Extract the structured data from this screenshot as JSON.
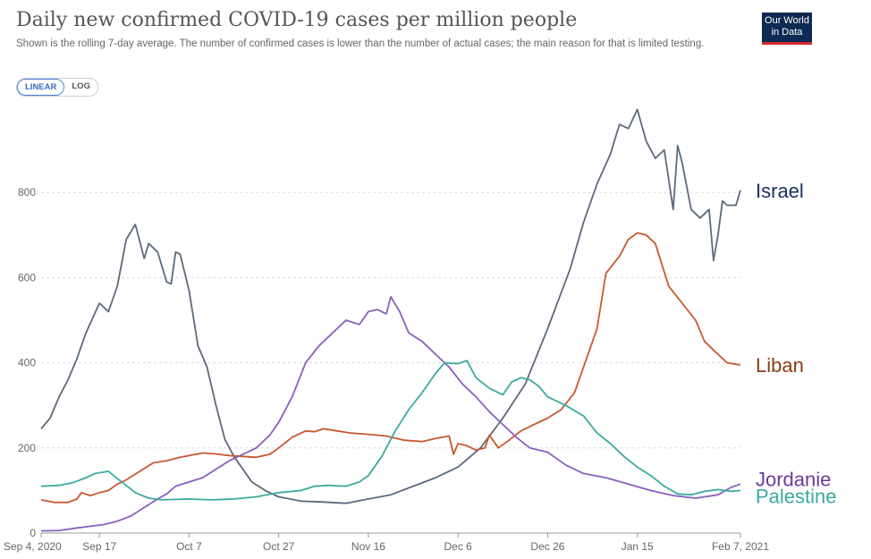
{
  "header": {
    "title": "Daily new confirmed COVID-19 cases per million people",
    "subtitle": "Shown is the rolling 7-day average. The number of confirmed cases is lower than the number of actual cases; the main reason for that is limited testing.",
    "logo_line1": "Our World",
    "logo_line2": "in Data"
  },
  "scale_toggle": {
    "linear_label": "LINEAR",
    "log_label": "LOG",
    "selected": "LINEAR"
  },
  "chart_data": {
    "type": "line",
    "title": "Daily new confirmed COVID-19 cases per million people",
    "x_start": "Sep 4, 2020",
    "x_end": "Feb 7, 2021",
    "x_ticks": [
      {
        "label": "Sep 4, 2020",
        "date": "2020-09-04"
      },
      {
        "label": "Sep 17",
        "date": "2020-09-17"
      },
      {
        "label": "Oct 7",
        "date": "2020-10-07"
      },
      {
        "label": "Oct 27",
        "date": "2020-10-27"
      },
      {
        "label": "Nov 16",
        "date": "2020-11-16"
      },
      {
        "label": "Dec 6",
        "date": "2020-12-06"
      },
      {
        "label": "Dec 26",
        "date": "2020-12-26"
      },
      {
        "label": "Jan 15",
        "date": "2021-01-15"
      },
      {
        "label": "Feb 7, 2021",
        "date": "2021-02-07"
      }
    ],
    "y_ticks": [
      0,
      200,
      400,
      600,
      800
    ],
    "ylim": [
      0,
      1000
    ],
    "grid": "horizontal dashed",
    "series": [
      {
        "name": "Israel",
        "color": "#5b6a7c",
        "label_color": "#1c2f63",
        "points": [
          [
            "2020-09-04",
            245
          ],
          [
            "2020-09-06",
            270
          ],
          [
            "2020-09-08",
            320
          ],
          [
            "2020-09-10",
            360
          ],
          [
            "2020-09-12",
            410
          ],
          [
            "2020-09-14",
            470
          ],
          [
            "2020-09-17",
            540
          ],
          [
            "2020-09-19",
            520
          ],
          [
            "2020-09-21",
            580
          ],
          [
            "2020-09-23",
            690
          ],
          [
            "2020-09-25",
            725
          ],
          [
            "2020-09-27",
            645
          ],
          [
            "2020-09-28",
            680
          ],
          [
            "2020-09-30",
            660
          ],
          [
            "2020-10-02",
            590
          ],
          [
            "2020-10-03",
            585
          ],
          [
            "2020-10-04",
            660
          ],
          [
            "2020-10-05",
            655
          ],
          [
            "2020-10-07",
            570
          ],
          [
            "2020-10-09",
            440
          ],
          [
            "2020-10-11",
            390
          ],
          [
            "2020-10-13",
            300
          ],
          [
            "2020-10-15",
            220
          ],
          [
            "2020-10-17",
            180
          ],
          [
            "2020-10-19",
            150
          ],
          [
            "2020-10-21",
            120
          ],
          [
            "2020-10-24",
            100
          ],
          [
            "2020-10-27",
            85
          ],
          [
            "2020-11-01",
            75
          ],
          [
            "2020-11-06",
            73
          ],
          [
            "2020-11-11",
            70
          ],
          [
            "2020-11-16",
            80
          ],
          [
            "2020-11-21",
            90
          ],
          [
            "2020-11-26",
            110
          ],
          [
            "2020-12-01",
            130
          ],
          [
            "2020-12-06",
            155
          ],
          [
            "2020-12-11",
            200
          ],
          [
            "2020-12-16",
            270
          ],
          [
            "2020-12-21",
            350
          ],
          [
            "2020-12-26",
            480
          ],
          [
            "2020-12-31",
            620
          ],
          [
            "2021-01-03",
            730
          ],
          [
            "2021-01-06",
            820
          ],
          [
            "2021-01-09",
            890
          ],
          [
            "2021-01-11",
            960
          ],
          [
            "2021-01-13",
            950
          ],
          [
            "2021-01-15",
            995
          ],
          [
            "2021-01-17",
            920
          ],
          [
            "2021-01-19",
            880
          ],
          [
            "2021-01-21",
            900
          ],
          [
            "2021-01-23",
            760
          ],
          [
            "2021-01-24",
            910
          ],
          [
            "2021-01-25",
            870
          ],
          [
            "2021-01-27",
            760
          ],
          [
            "2021-01-29",
            740
          ],
          [
            "2021-01-31",
            760
          ],
          [
            "2021-02-01",
            640
          ],
          [
            "2021-02-02",
            700
          ],
          [
            "2021-02-03",
            780
          ],
          [
            "2021-02-04",
            770
          ],
          [
            "2021-02-06",
            770
          ],
          [
            "2021-02-07",
            805
          ]
        ]
      },
      {
        "name": "Liban",
        "color": "#c9572f",
        "label_color": "#8a3d16",
        "points": [
          [
            "2020-09-04",
            78
          ],
          [
            "2020-09-07",
            72
          ],
          [
            "2020-09-10",
            72
          ],
          [
            "2020-09-12",
            80
          ],
          [
            "2020-09-13",
            95
          ],
          [
            "2020-09-15",
            88
          ],
          [
            "2020-09-17",
            95
          ],
          [
            "2020-09-19",
            100
          ],
          [
            "2020-09-21",
            115
          ],
          [
            "2020-09-23",
            125
          ],
          [
            "2020-09-26",
            145
          ],
          [
            "2020-09-29",
            165
          ],
          [
            "2020-10-02",
            170
          ],
          [
            "2020-10-05",
            178
          ],
          [
            "2020-10-07",
            182
          ],
          [
            "2020-10-10",
            188
          ],
          [
            "2020-10-13",
            186
          ],
          [
            "2020-10-16",
            182
          ],
          [
            "2020-10-19",
            180
          ],
          [
            "2020-10-22",
            178
          ],
          [
            "2020-10-25",
            185
          ],
          [
            "2020-10-27",
            200
          ],
          [
            "2020-10-30",
            225
          ],
          [
            "2020-11-02",
            240
          ],
          [
            "2020-11-04",
            238
          ],
          [
            "2020-11-06",
            245
          ],
          [
            "2020-11-09",
            240
          ],
          [
            "2020-11-12",
            235
          ],
          [
            "2020-11-16",
            232
          ],
          [
            "2020-11-20",
            228
          ],
          [
            "2020-11-24",
            218
          ],
          [
            "2020-11-28",
            215
          ],
          [
            "2020-12-01",
            222
          ],
          [
            "2020-12-04",
            228
          ],
          [
            "2020-12-05",
            185
          ],
          [
            "2020-12-06",
            210
          ],
          [
            "2020-12-08",
            205
          ],
          [
            "2020-12-10",
            195
          ],
          [
            "2020-12-12",
            200
          ],
          [
            "2020-12-13",
            230
          ],
          [
            "2020-12-15",
            200
          ],
          [
            "2020-12-17",
            215
          ],
          [
            "2020-12-20",
            240
          ],
          [
            "2020-12-23",
            255
          ],
          [
            "2020-12-26",
            270
          ],
          [
            "2020-12-29",
            290
          ],
          [
            "2021-01-01",
            330
          ],
          [
            "2021-01-04",
            420
          ],
          [
            "2021-01-06",
            480
          ],
          [
            "2021-01-08",
            610
          ],
          [
            "2021-01-11",
            650
          ],
          [
            "2021-01-13",
            690
          ],
          [
            "2021-01-15",
            705
          ],
          [
            "2021-01-17",
            700
          ],
          [
            "2021-01-19",
            680
          ],
          [
            "2021-01-22",
            580
          ],
          [
            "2021-01-25",
            540
          ],
          [
            "2021-01-28",
            500
          ],
          [
            "2021-01-30",
            450
          ],
          [
            "2021-02-02",
            420
          ],
          [
            "2021-02-04",
            400
          ],
          [
            "2021-02-07",
            395
          ]
        ]
      },
      {
        "name": "Jordanie",
        "color": "#8a5fbe",
        "label_color": "#6a3a99",
        "points": [
          [
            "2020-09-04",
            5
          ],
          [
            "2020-09-08",
            6
          ],
          [
            "2020-09-12",
            12
          ],
          [
            "2020-09-15",
            16
          ],
          [
            "2020-09-18",
            20
          ],
          [
            "2020-09-21",
            28
          ],
          [
            "2020-09-24",
            40
          ],
          [
            "2020-09-27",
            60
          ],
          [
            "2020-09-30",
            80
          ],
          [
            "2020-10-02",
            92
          ],
          [
            "2020-10-04",
            110
          ],
          [
            "2020-10-07",
            120
          ],
          [
            "2020-10-10",
            130
          ],
          [
            "2020-10-13",
            150
          ],
          [
            "2020-10-16",
            170
          ],
          [
            "2020-10-19",
            185
          ],
          [
            "2020-10-22",
            200
          ],
          [
            "2020-10-25",
            230
          ],
          [
            "2020-10-27",
            260
          ],
          [
            "2020-10-30",
            320
          ],
          [
            "2020-11-02",
            400
          ],
          [
            "2020-11-05",
            440
          ],
          [
            "2020-11-08",
            470
          ],
          [
            "2020-11-11",
            500
          ],
          [
            "2020-11-14",
            490
          ],
          [
            "2020-11-16",
            520
          ],
          [
            "2020-11-18",
            525
          ],
          [
            "2020-11-20",
            515
          ],
          [
            "2020-11-21",
            555
          ],
          [
            "2020-11-23",
            520
          ],
          [
            "2020-11-25",
            470
          ],
          [
            "2020-11-28",
            450
          ],
          [
            "2020-12-01",
            420
          ],
          [
            "2020-12-04",
            390
          ],
          [
            "2020-12-07",
            350
          ],
          [
            "2020-12-10",
            320
          ],
          [
            "2020-12-13",
            285
          ],
          [
            "2020-12-16",
            255
          ],
          [
            "2020-12-19",
            225
          ],
          [
            "2020-12-22",
            200
          ],
          [
            "2020-12-26",
            190
          ],
          [
            "2020-12-30",
            160
          ],
          [
            "2021-01-03",
            140
          ],
          [
            "2021-01-08",
            130
          ],
          [
            "2021-01-13",
            115
          ],
          [
            "2021-01-18",
            100
          ],
          [
            "2021-01-23",
            88
          ],
          [
            "2021-01-28",
            82
          ],
          [
            "2021-02-02",
            90
          ],
          [
            "2021-02-05",
            108
          ],
          [
            "2021-02-07",
            115
          ]
        ]
      },
      {
        "name": "Palestine",
        "color": "#3aaa9e",
        "label_color": "#3aaa9e",
        "points": [
          [
            "2020-09-04",
            110
          ],
          [
            "2020-09-08",
            112
          ],
          [
            "2020-09-11",
            118
          ],
          [
            "2020-09-14",
            130
          ],
          [
            "2020-09-16",
            140
          ],
          [
            "2020-09-19",
            145
          ],
          [
            "2020-09-22",
            120
          ],
          [
            "2020-09-25",
            95
          ],
          [
            "2020-09-28",
            82
          ],
          [
            "2020-10-01",
            78
          ],
          [
            "2020-10-07",
            80
          ],
          [
            "2020-10-12",
            78
          ],
          [
            "2020-10-17",
            80
          ],
          [
            "2020-10-22",
            85
          ],
          [
            "2020-10-27",
            95
          ],
          [
            "2020-11-01",
            100
          ],
          [
            "2020-11-04",
            110
          ],
          [
            "2020-11-07",
            112
          ],
          [
            "2020-11-11",
            110
          ],
          [
            "2020-11-14",
            120
          ],
          [
            "2020-11-16",
            135
          ],
          [
            "2020-11-19",
            180
          ],
          [
            "2020-11-22",
            240
          ],
          [
            "2020-11-25",
            290
          ],
          [
            "2020-11-28",
            330
          ],
          [
            "2020-12-01",
            375
          ],
          [
            "2020-12-03",
            400
          ],
          [
            "2020-12-06",
            398
          ],
          [
            "2020-12-08",
            405
          ],
          [
            "2020-12-10",
            365
          ],
          [
            "2020-12-13",
            340
          ],
          [
            "2020-12-16",
            325
          ],
          [
            "2020-12-18",
            355
          ],
          [
            "2020-12-20",
            365
          ],
          [
            "2020-12-22",
            360
          ],
          [
            "2020-12-24",
            345
          ],
          [
            "2020-12-26",
            320
          ],
          [
            "2020-12-30",
            300
          ],
          [
            "2021-01-03",
            275
          ],
          [
            "2021-01-06",
            235
          ],
          [
            "2021-01-09",
            210
          ],
          [
            "2021-01-12",
            180
          ],
          [
            "2021-01-15",
            155
          ],
          [
            "2021-01-18",
            135
          ],
          [
            "2021-01-21",
            110
          ],
          [
            "2021-01-24",
            92
          ],
          [
            "2021-01-27",
            90
          ],
          [
            "2021-01-30",
            98
          ],
          [
            "2021-02-02",
            102
          ],
          [
            "2021-02-05",
            98
          ],
          [
            "2021-02-07",
            100
          ]
        ]
      }
    ]
  }
}
